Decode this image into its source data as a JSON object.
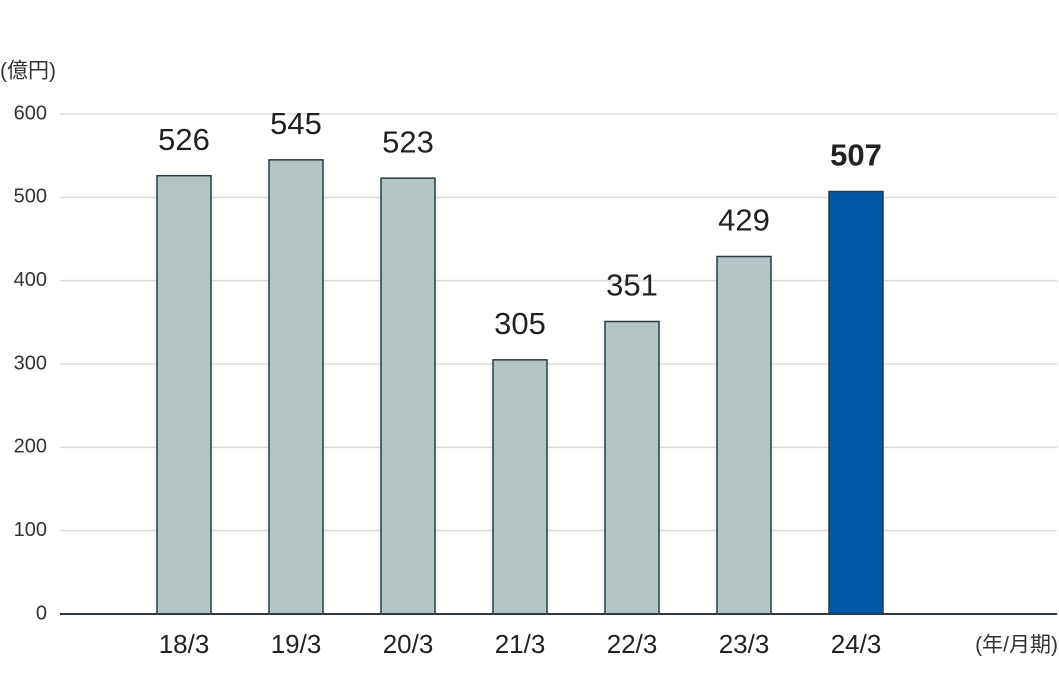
{
  "chart_data": {
    "type": "bar",
    "y_label": "(億円)",
    "x_label": "(年/月期)",
    "categories": [
      "18/3",
      "19/3",
      "20/3",
      "21/3",
      "22/3",
      "23/3",
      "24/3"
    ],
    "values": [
      526,
      545,
      523,
      305,
      351,
      429,
      507
    ],
    "colors": [
      "#b2c4c4",
      "#b2c4c4",
      "#b2c4c4",
      "#b2c4c4",
      "#b2c4c4",
      "#b2c4c4",
      "#0057a8"
    ],
    "label_weights": [
      "normal",
      "normal",
      "normal",
      "normal",
      "normal",
      "normal",
      "bold"
    ],
    "ylim": [
      0,
      600
    ],
    "yticks": [
      0,
      100,
      200,
      300,
      400,
      500,
      600
    ],
    "grid": true
  }
}
